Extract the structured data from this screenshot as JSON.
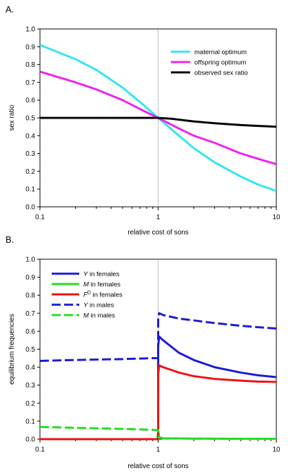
{
  "chart_data": [
    {
      "panel_label": "A.",
      "type": "line",
      "title": "",
      "xlabel": "relative cost of sons",
      "ylabel": "sex ratio",
      "xscale": "log",
      "xlim": [
        0.1,
        10
      ],
      "ylim": [
        0,
        1
      ],
      "xticks": [
        0.1,
        1,
        10
      ],
      "xtick_labels": [
        "0.1",
        "1",
        "10"
      ],
      "yticks": [
        0,
        0.1,
        0.2,
        0.3,
        0.4,
        0.5,
        0.6,
        0.7,
        0.8,
        0.9,
        1
      ],
      "ytick_labels": [
        "0.0",
        "0.1",
        "0.2",
        "0.3",
        "0.4",
        "0.5",
        "0.6",
        "0.7",
        "0.8",
        "0.9",
        "1.0"
      ],
      "reference_line_x": 1,
      "grid": false,
      "legend_position": "top-right",
      "series": [
        {
          "name": "maternal optimum",
          "color": "#33e6f0",
          "dash": "solid",
          "x": [
            0.1,
            0.2,
            0.3,
            0.5,
            0.7,
            1,
            1.5,
            2,
            3,
            5,
            7,
            10
          ],
          "y": [
            0.91,
            0.83,
            0.77,
            0.67,
            0.59,
            0.5,
            0.4,
            0.33,
            0.25,
            0.17,
            0.125,
            0.09
          ]
        },
        {
          "name": "offspring optimum",
          "color": "#ee22ee",
          "dash": "solid",
          "x": [
            0.1,
            0.2,
            0.3,
            0.5,
            0.7,
            1,
            1.5,
            2,
            3,
            5,
            7,
            10
          ],
          "y": [
            0.76,
            0.7,
            0.66,
            0.6,
            0.55,
            0.5,
            0.44,
            0.4,
            0.36,
            0.3,
            0.27,
            0.24
          ]
        },
        {
          "name": "observed sex ratio",
          "color": "#000000",
          "dash": "solid",
          "x": [
            0.1,
            0.5,
            1,
            1.3,
            2,
            3,
            5,
            7,
            10
          ],
          "y": [
            0.5,
            0.5,
            0.5,
            0.495,
            0.48,
            0.47,
            0.46,
            0.455,
            0.45
          ]
        }
      ]
    },
    {
      "panel_label": "B.",
      "type": "line",
      "title": "",
      "xlabel": "relative cost of sons",
      "ylabel": "equilibrium frequencies",
      "xscale": "log",
      "xlim": [
        0.1,
        10
      ],
      "ylim": [
        0,
        1
      ],
      "xticks": [
        0.1,
        1,
        10
      ],
      "xtick_labels": [
        "0.1",
        "1",
        "10"
      ],
      "yticks": [
        0,
        0.1,
        0.2,
        0.3,
        0.4,
        0.5,
        0.6,
        0.7,
        0.8,
        0.9,
        1
      ],
      "ytick_labels": [
        "0.0",
        "0.1",
        "0.2",
        "0.3",
        "0.4",
        "0.5",
        "0.6",
        "0.7",
        "0.8",
        "0.9",
        "1.0"
      ],
      "reference_line_x": 1,
      "grid": false,
      "legend_position": "top-left",
      "series": [
        {
          "name_italic": "Y",
          "name_rest": " in females",
          "color": "#1a1ad8",
          "dash": "solid",
          "x": [
            0.1,
            0.9,
            0.99,
            1.0,
            1.001,
            1.02,
            1.1,
            1.5,
            2,
            3,
            5,
            7,
            10
          ],
          "y": [
            0.0,
            0.0,
            0.0,
            0.0,
            0.52,
            0.57,
            0.55,
            0.48,
            0.44,
            0.4,
            0.37,
            0.355,
            0.345
          ]
        },
        {
          "name_italic": "M",
          "name_rest": " in females",
          "color": "#22dd22",
          "dash": "solid",
          "x": [
            0.1,
            0.9,
            0.985,
            1.0,
            1.02,
            1.1,
            2,
            5,
            10
          ],
          "y": [
            0.0,
            0.0,
            0.0,
            0.05,
            0.01,
            0.005,
            0.003,
            0.002,
            0.002
          ]
        },
        {
          "name_italic": "F",
          "name_sup": "D",
          "name_rest": " in females",
          "color": "#ee1111",
          "dash": "solid",
          "x": [
            0.1,
            0.9,
            0.99,
            1.0,
            1.001,
            1.02,
            1.1,
            1.5,
            2,
            3,
            5,
            7,
            10
          ],
          "y": [
            0.0,
            0.0,
            0.0,
            0.0,
            0.36,
            0.41,
            0.4,
            0.37,
            0.35,
            0.335,
            0.325,
            0.32,
            0.318
          ]
        },
        {
          "name_italic": "Y",
          "name_rest": " in males",
          "color": "#1a1ad8",
          "dash": "dashed",
          "x": [
            0.1,
            0.2,
            0.5,
            0.9,
            0.99,
            1.0,
            1.001,
            1.02,
            1.1,
            1.5,
            2,
            3,
            5,
            7,
            10
          ],
          "y": [
            0.435,
            0.44,
            0.445,
            0.45,
            0.45,
            0.45,
            0.68,
            0.7,
            0.69,
            0.67,
            0.66,
            0.645,
            0.63,
            0.622,
            0.615
          ]
        },
        {
          "name_italic": "M",
          "name_rest": " in males",
          "color": "#22dd22",
          "dash": "dashed",
          "x": [
            0.1,
            0.2,
            0.5,
            0.9,
            0.99,
            1.0,
            1.01,
            1.1,
            2,
            5,
            10
          ],
          "y": [
            0.068,
            0.063,
            0.057,
            0.052,
            0.05,
            0.05,
            0.01,
            0.004,
            0.003,
            0.002,
            0.002
          ]
        }
      ]
    }
  ]
}
